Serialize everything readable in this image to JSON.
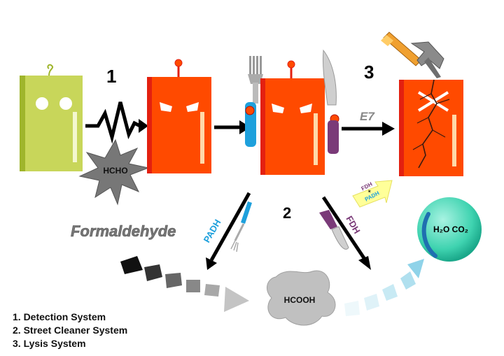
{
  "steps": {
    "one": "1",
    "two": "2",
    "three": "3"
  },
  "labels": {
    "hcho": "HCHO",
    "formaldehyde": "Formaldehyde",
    "hcooh": "HCOOH",
    "e7": "E7",
    "padh": "PADH",
    "fdh": "FDH",
    "fdh_padh_top": "FDH",
    "fdh_padh_plus": "+",
    "fdh_padh_bottom": "PADH",
    "h2o_co2": "H₂O CO₂"
  },
  "legend": [
    "1. Detection  System",
    "2. Street  Cleaner System",
    "3. Lysis  System"
  ],
  "colors": {
    "cell_idle": "#c8d65a",
    "cell_active": "#ff4a00",
    "padh": "#1ea0dc",
    "fdh": "#7a3a78",
    "sphere": "#3fd3b0"
  }
}
